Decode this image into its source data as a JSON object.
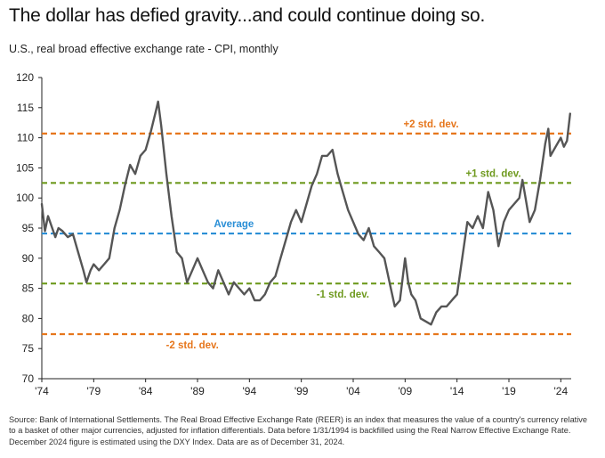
{
  "title": "The dollar has defied gravity...and could continue doing so.",
  "subtitle": "U.S., real broad effective exchange rate - CPI, monthly",
  "source": "Source: Bank of International Settlements. The Real Broad Effective Exchange Rate (REER) is an index that measures the value of a country's currency relative to a basket of other major currencies, adjusted for inflation differentials. Data before 1/31/1994 is backfilled using the Real Narrow Effective Exchange Rate. December 2024 figure is estimated using the DXY Index. Data are as of December 31, 2024.",
  "colors": {
    "line": "#555555",
    "std2": "#e6761c",
    "std1": "#6f9a1f",
    "average": "#2b8fd6",
    "axis": "#222222"
  },
  "chart_data": {
    "type": "line",
    "title": "The dollar has defied gravity...and could continue doing so.",
    "subtitle": "U.S., real broad effective exchange rate - CPI, monthly",
    "xlabel": "",
    "ylabel": "",
    "xlim": [
      1974,
      2025
    ],
    "ylim": [
      70,
      120
    ],
    "yticks": [
      70,
      75,
      80,
      85,
      90,
      95,
      100,
      105,
      110,
      115,
      120
    ],
    "xticks": [
      {
        "value": 1974,
        "label": "'74"
      },
      {
        "value": 1979,
        "label": "'79"
      },
      {
        "value": 1984,
        "label": "'84"
      },
      {
        "value": 1989,
        "label": "'89"
      },
      {
        "value": 1994,
        "label": "'94"
      },
      {
        "value": 1999,
        "label": "'99"
      },
      {
        "value": 2004,
        "label": "'04"
      },
      {
        "value": 2009,
        "label": "'09"
      },
      {
        "value": 2014,
        "label": "'14"
      },
      {
        "value": 2019,
        "label": "'19"
      },
      {
        "value": 2024,
        "label": "'24"
      }
    ],
    "grid": false,
    "reference_lines": [
      {
        "label": "+2 std. dev.",
        "value": 110.7,
        "color": "#e6761c",
        "label_x": 2011.5,
        "label_pos": "above"
      },
      {
        "label": "+1 std. dev.",
        "value": 102.5,
        "color": "#6f9a1f",
        "label_x": 2017.5,
        "label_pos": "above"
      },
      {
        "label": "Average",
        "value": 94.1,
        "color": "#2b8fd6",
        "label_x": 1992.5,
        "label_pos": "above"
      },
      {
        "label": "-1 std. dev.",
        "value": 85.8,
        "color": "#6f9a1f",
        "label_x": 2003.0,
        "label_pos": "below"
      },
      {
        "label": "-2 std. dev.",
        "value": 77.4,
        "color": "#e6761c",
        "label_x": 1988.5,
        "label_pos": "below"
      }
    ],
    "series": [
      {
        "x": [
          1974.0,
          1974.3,
          1974.6,
          1975.0,
          1975.3,
          1975.6,
          1976.0,
          1976.5,
          1977.0,
          1977.5,
          1978.0,
          1978.3,
          1978.7,
          1979.0,
          1979.5,
          1980.0,
          1980.5,
          1981.0,
          1981.5,
          1982.0,
          1982.5,
          1983.0,
          1983.5,
          1984.0,
          1984.5,
          1985.0,
          1985.2,
          1985.5,
          1986.0,
          1986.5,
          1987.0,
          1987.5,
          1988.0,
          1988.5,
          1989.0,
          1989.5,
          1990.0,
          1990.5,
          1991.0,
          1991.5,
          1992.0,
          1992.5,
          1993.0,
          1993.5,
          1994.0,
          1994.5,
          1995.0,
          1995.5,
          1996.0,
          1996.5,
          1997.0,
          1997.5,
          1998.0,
          1998.5,
          1999.0,
          1999.5,
          2000.0,
          2000.5,
          2001.0,
          2001.5,
          2002.0,
          2002.5,
          2003.0,
          2003.5,
          2004.0,
          2004.5,
          2005.0,
          2005.5,
          2006.0,
          2006.5,
          2007.0,
          2007.5,
          2008.0,
          2008.5,
          2009.0,
          2009.3,
          2009.6,
          2010.0,
          2010.5,
          2011.0,
          2011.5,
          2012.0,
          2012.5,
          2013.0,
          2013.5,
          2014.0,
          2014.5,
          2015.0,
          2015.5,
          2016.0,
          2016.5,
          2017.0,
          2017.5,
          2018.0,
          2018.5,
          2019.0,
          2019.5,
          2020.0,
          2020.3,
          2020.6,
          2021.0,
          2021.5,
          2022.0,
          2022.5,
          2022.8,
          2023.0,
          2023.5,
          2024.0,
          2024.3,
          2024.6,
          2024.9
        ],
        "y": [
          99.0,
          94.5,
          97.0,
          95.0,
          93.5,
          95.0,
          94.5,
          93.5,
          94.0,
          91.0,
          88.0,
          86.0,
          88.0,
          89.0,
          88.0,
          89.0,
          90.0,
          95.0,
          98.0,
          102.0,
          105.5,
          104.0,
          107.0,
          108.0,
          111.0,
          114.5,
          116.0,
          112.0,
          104.0,
          97.0,
          91.0,
          90.0,
          86.0,
          88.0,
          90.0,
          88.0,
          86.0,
          85.0,
          88.0,
          86.0,
          84.0,
          86.0,
          85.0,
          84.0,
          85.0,
          83.0,
          83.0,
          84.0,
          86.0,
          87.0,
          90.0,
          93.0,
          96.0,
          98.0,
          96.0,
          99.0,
          102.0,
          104.0,
          107.0,
          107.0,
          108.0,
          104.0,
          101.0,
          98.0,
          96.0,
          94.0,
          93.0,
          95.0,
          92.0,
          91.0,
          90.0,
          86.0,
          82.0,
          83.0,
          90.0,
          86.0,
          84.0,
          83.0,
          80.0,
          79.5,
          79.0,
          81.0,
          82.0,
          82.0,
          83.0,
          84.0,
          90.0,
          96.0,
          95.0,
          97.0,
          95.0,
          101.0,
          98.0,
          92.0,
          96.0,
          98.0,
          99.0,
          100.0,
          103.0,
          100.0,
          96.0,
          98.0,
          103.0,
          109.0,
          111.5,
          107.0,
          108.5,
          110.0,
          108.5,
          109.5,
          114.0
        ]
      }
    ]
  }
}
